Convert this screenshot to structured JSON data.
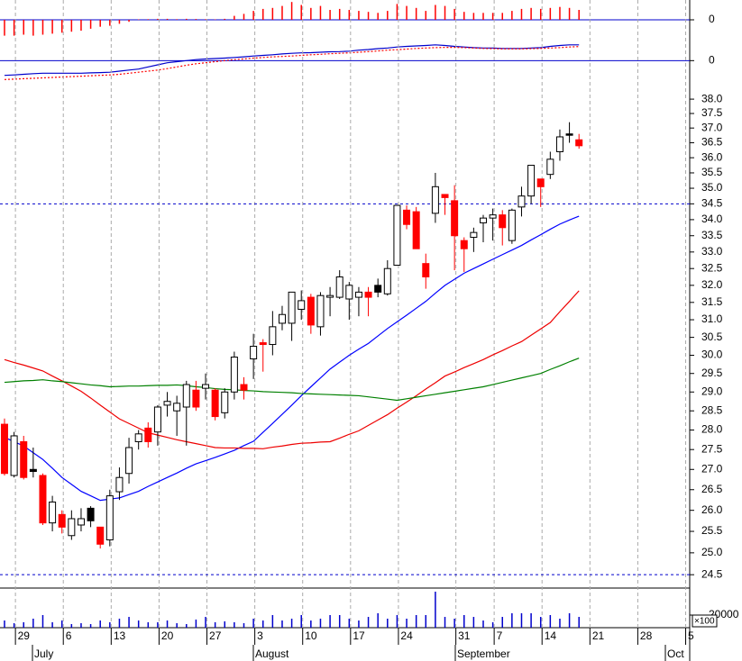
{
  "chart_data": [
    {
      "type": "bar",
      "color": "#ff0000",
      "ylim": [
        -1,
        1
      ],
      "yticks": [
        0
      ],
      "grid": true,
      "grid_color": "#0000cc",
      "values": [
        -0.8,
        -0.8,
        -0.75,
        -0.8,
        -0.75,
        -0.7,
        -0.65,
        -0.6,
        -0.55,
        -0.45,
        -0.35,
        -0.3,
        -0.2,
        -0.1,
        0.02,
        0.03,
        0.05,
        0.05,
        0.03,
        0.05,
        0.04,
        0.03,
        0.02,
        0.05,
        0.2,
        0.3,
        0.45,
        0.55,
        0.6,
        0.7,
        0.9,
        0.75,
        0.6,
        0.7,
        0.5,
        0.55,
        0.5,
        0.45,
        0.4,
        0.35,
        0.45,
        0.8,
        0.7,
        0.6,
        0.45,
        0.75,
        0.7,
        0.55,
        0.4,
        0.35,
        0.35,
        0.35,
        0.35,
        0.45,
        0.55,
        0.6,
        0.55,
        0.6,
        0.65,
        0.6,
        0.5,
        null,
        null,
        null,
        null,
        null,
        null,
        null,
        null,
        null,
        null,
        null
      ]
    },
    {
      "type": "line",
      "ylim": [
        -1.4,
        1
      ],
      "yticks": [
        0
      ],
      "grid": true,
      "grid_color": "#0000cc",
      "series": [
        {
          "color": "#0000cc",
          "line_style": "solid",
          "values": [
            -0.7,
            -0.68,
            -0.65,
            -0.62,
            -0.6,
            -0.6,
            -0.6,
            -0.6,
            -0.6,
            -0.58,
            -0.57,
            -0.55,
            -0.5,
            -0.45,
            -0.4,
            -0.3,
            -0.2,
            -0.1,
            -0.05,
            0,
            0.05,
            0.08,
            0.1,
            0.12,
            0.15,
            0.18,
            0.22,
            0.25,
            0.28,
            0.32,
            0.35,
            0.37,
            0.38,
            0.4,
            0.42,
            0.43,
            0.45,
            0.5,
            0.53,
            0.57,
            0.6,
            0.65,
            0.68,
            0.7,
            0.72,
            0.75,
            0.72,
            0.68,
            0.65,
            0.62,
            0.6,
            0.6,
            0.58,
            0.58,
            0.58,
            0.6,
            0.62,
            0.68,
            0.72,
            0.75,
            0.75,
            null,
            null,
            null,
            null,
            null,
            null,
            null,
            null,
            null,
            null,
            null
          ]
        },
        {
          "color": "#ff0000",
          "line_style": "dotted",
          "values": [
            -0.9,
            -0.88,
            -0.86,
            -0.84,
            -0.82,
            -0.8,
            -0.78,
            -0.76,
            -0.74,
            -0.72,
            -0.7,
            -0.68,
            -0.65,
            -0.6,
            -0.55,
            -0.5,
            -0.45,
            -0.38,
            -0.3,
            -0.22,
            -0.15,
            -0.1,
            -0.05,
            0,
            0.05,
            0.08,
            0.12,
            0.15,
            0.18,
            0.2,
            0.22,
            0.25,
            0.28,
            0.3,
            0.33,
            0.35,
            0.37,
            0.4,
            0.43,
            0.46,
            0.5,
            0.52,
            0.55,
            0.58,
            0.6,
            0.62,
            0.63,
            0.63,
            0.62,
            0.6,
            0.58,
            0.57,
            0.56,
            0.56,
            0.56,
            0.57,
            0.58,
            0.6,
            0.62,
            0.65,
            0.67,
            null,
            null,
            null,
            null,
            null,
            null,
            null,
            null,
            null,
            null,
            null
          ]
        }
      ]
    },
    {
      "type": "candlestick",
      "log_scale": true,
      "ylim": [
        24.2,
        38.32
      ],
      "x_grid": true,
      "categories": [
        null,
        "29",
        null,
        null,
        null,
        null,
        "6",
        null,
        null,
        null,
        null,
        "13",
        null,
        null,
        null,
        null,
        "20",
        null,
        null,
        null,
        null,
        "27",
        null,
        null,
        null,
        null,
        "3",
        null,
        null,
        null,
        null,
        "10",
        null,
        null,
        null,
        null,
        "17",
        null,
        null,
        null,
        null,
        "24",
        null,
        null,
        null,
        null,
        null,
        "31",
        null,
        null,
        null,
        "7",
        null,
        null,
        null,
        null,
        "14",
        null,
        null,
        null,
        null,
        "21",
        null,
        null,
        null,
        null,
        "28",
        null,
        null,
        null,
        null,
        "5"
      ],
      "months": [
        "July",
        "August",
        "September",
        "Oct"
      ],
      "yticks": [
        {
          "value": 24.5,
          "label": "24.5"
        },
        {
          "value": 25,
          "label": "25.0"
        },
        {
          "value": 25.5,
          "label": "25.5"
        },
        {
          "value": 26,
          "label": "26.0"
        },
        {
          "value": 26.5,
          "label": "26.5"
        },
        {
          "value": 27,
          "label": "27.0"
        },
        {
          "value": 27.5,
          "label": "27.5"
        },
        {
          "value": 28,
          "label": "28.0"
        },
        {
          "value": 28.5,
          "label": "28.5"
        },
        {
          "value": 29,
          "label": "29.0"
        },
        {
          "value": 29.5,
          "label": "29.5"
        },
        {
          "value": 30,
          "label": "30.0"
        },
        {
          "value": 30.5,
          "label": "30.5"
        },
        {
          "value": 31,
          "label": "31.0"
        },
        {
          "value": 31.5,
          "label": "31.5"
        },
        {
          "value": 32,
          "label": "32.0"
        },
        {
          "value": 32.5,
          "label": "32.5"
        },
        {
          "value": 33,
          "label": "33.0"
        },
        {
          "value": 33.5,
          "label": "33.5"
        },
        {
          "value": 34,
          "label": "34.0"
        },
        {
          "value": 34.5,
          "label": "34.5"
        },
        {
          "value": 35,
          "label": "35.0"
        },
        {
          "value": 35.5,
          "label": "35.5"
        },
        {
          "value": 36,
          "label": "36.0"
        },
        {
          "value": 36.5,
          "label": "36.5"
        },
        {
          "value": 37,
          "label": "37.0"
        },
        {
          "value": 37.5,
          "label": "37.5"
        },
        {
          "value": 38,
          "label": "38.0"
        }
      ],
      "reference_lines": [
        34.5,
        24.5
      ],
      "reference_color": "#0000cc",
      "open": [
        28.15,
        26.85,
        27.7,
        27.0,
        26.85,
        25.7,
        25.9,
        25.4,
        25.65,
        26.05,
        25.6,
        25.3,
        26.45,
        26.9,
        27.7,
        28.05,
        27.95,
        28.65,
        28.5,
        28.6,
        29.05,
        29.1,
        29.05,
        28.45,
        29.0,
        29.2,
        29.9,
        30.35,
        30.3,
        30.9,
        30.9,
        31.3,
        31.65,
        30.8,
        31.65,
        31.65,
        31.6,
        31.65,
        31.8,
        31.8,
        31.75,
        32.6,
        34.3,
        34.25,
        32.65,
        34.2,
        34.8,
        34.6,
        33.35,
        33.45,
        33.9,
        34.05,
        34.15,
        33.35,
        34.4,
        34.75,
        35.3,
        35.45,
        36.2,
        36.8,
        36.6,
        null,
        null,
        null,
        null,
        null,
        null,
        null,
        null,
        null,
        null,
        null
      ],
      "high": [
        28.3,
        27.95,
        27.85,
        27.55,
        26.9,
        26.35,
        26.0,
        26.0,
        26.05,
        26.1,
        25.6,
        26.5,
        27.05,
        27.8,
        28.0,
        28.2,
        28.65,
        29.0,
        28.9,
        29.3,
        29.3,
        29.5,
        29.1,
        29.1,
        30.1,
        29.4,
        30.6,
        30.45,
        31.25,
        31.4,
        31.8,
        31.85,
        31.75,
        31.8,
        31.95,
        32.45,
        32.1,
        31.95,
        31.95,
        32.2,
        32.75,
        34.45,
        34.45,
        34.4,
        32.95,
        35.5,
        34.8,
        35.1,
        33.45,
        33.75,
        34.15,
        34.35,
        34.3,
        34.35,
        35.05,
        35.75,
        35.3,
        36.2,
        36.95,
        37.2,
        36.8,
        null,
        null,
        null,
        null,
        null,
        null,
        null,
        null,
        null,
        null,
        null
      ],
      "low": [
        26.85,
        26.8,
        26.75,
        26.8,
        25.65,
        25.5,
        25.45,
        25.3,
        25.5,
        25.6,
        25.1,
        25.15,
        26.25,
        26.65,
        27.5,
        27.55,
        27.6,
        28.35,
        27.85,
        27.6,
        28.5,
        28.8,
        28.25,
        28.3,
        28.8,
        28.8,
        29.35,
        29.55,
        30.0,
        30.7,
        30.4,
        31.0,
        30.6,
        30.55,
        31.1,
        31.6,
        31.0,
        31.1,
        31.1,
        31.65,
        31.7,
        32.6,
        33.7,
        33.1,
        31.9,
        33.9,
        34.15,
        32.45,
        32.4,
        33.0,
        33.3,
        33.35,
        33.2,
        33.25,
        34.1,
        34.5,
        34.4,
        35.3,
        35.9,
        36.5,
        36.3,
        null,
        null,
        null,
        null,
        null,
        null,
        null,
        null,
        null,
        null,
        null
      ],
      "close": [
        26.9,
        27.85,
        26.8,
        26.95,
        25.7,
        26.2,
        25.6,
        25.8,
        25.8,
        25.75,
        25.2,
        26.35,
        26.8,
        27.55,
        27.9,
        27.7,
        28.6,
        28.75,
        28.7,
        29.2,
        28.6,
        29.2,
        28.35,
        29.0,
        29.95,
        29.05,
        30.25,
        30.3,
        30.8,
        31.15,
        31.8,
        31.55,
        30.85,
        31.7,
        31.7,
        32.25,
        32.0,
        31.8,
        31.65,
        32.0,
        32.5,
        34.45,
        33.85,
        33.1,
        32.25,
        35.05,
        34.7,
        33.5,
        33.1,
        33.6,
        34.05,
        34.15,
        33.75,
        34.3,
        34.75,
        35.75,
        35.05,
        35.95,
        36.7,
        36.8,
        36.4,
        null,
        null,
        null,
        null,
        null,
        null,
        null,
        null,
        null,
        null,
        null
      ],
      "candle_colors": [
        "#ff0000",
        "#ffffff",
        "#ff0000",
        "#000000",
        "#ff0000",
        "#ffffff",
        "#ff0000",
        "#ffffff",
        "#ffffff",
        "#000000",
        "#ff0000",
        "#ffffff",
        "#ffffff",
        "#ffffff",
        "#ffffff",
        "#ff0000",
        "#ffffff",
        "#ffffff",
        "#ffffff",
        "#ffffff",
        "#ff0000",
        "#ffffff",
        "#ff0000",
        "#ffffff",
        "#ffffff",
        "#ff0000",
        "#ffffff",
        "#ff0000",
        "#ffffff",
        "#ffffff",
        "#ffffff",
        "#ffffff",
        "#ff0000",
        "#ffffff",
        "#ffffff",
        "#ffffff",
        "#ffffff",
        "#ffffff",
        "#ff0000",
        "#000000",
        "#ffffff",
        "#ffffff",
        "#ff0000",
        "#ff0000",
        "#ff0000",
        "#ffffff",
        "#ff0000",
        "#ff0000",
        "#ff0000",
        "#ffffff",
        "#ffffff",
        "#ffffff",
        "#ff0000",
        "#ffffff",
        "#ffffff",
        "#ffffff",
        "#ff0000",
        "#ffffff",
        "#ffffff",
        "#000000",
        "#ff0000",
        null,
        null,
        null,
        null,
        null,
        null,
        null,
        null,
        null,
        null,
        null
      ],
      "series": [
        {
          "color": "#0000ff",
          "values": [
            27.81,
            27.7,
            27.59,
            27.42,
            27.25,
            27.03,
            26.8,
            26.63,
            26.46,
            26.35,
            26.24,
            26.27,
            26.3,
            26.38,
            26.46,
            26.58,
            26.69,
            26.8,
            26.91,
            27.03,
            27.14,
            27.22,
            27.3,
            27.39,
            27.48,
            27.6,
            27.71,
            27.94,
            28.17,
            28.41,
            28.65,
            28.9,
            29.14,
            29.38,
            29.62,
            29.81,
            30.0,
            30.17,
            30.33,
            30.54,
            30.75,
            30.94,
            31.13,
            31.33,
            31.53,
            31.77,
            32.0,
            32.18,
            32.36,
            32.5,
            32.64,
            32.78,
            32.92,
            33.06,
            33.2,
            33.37,
            33.53,
            33.7,
            33.86,
            33.99,
            34.11,
            null,
            null,
            null,
            null,
            null,
            null,
            null,
            null,
            null,
            null,
            null
          ]
        },
        {
          "color": "#ee0000",
          "values": [
            29.88,
            29.8,
            29.73,
            29.65,
            29.57,
            29.43,
            29.3,
            29.16,
            29.02,
            28.84,
            28.65,
            28.47,
            28.29,
            28.17,
            28.05,
            27.93,
            27.87,
            27.81,
            27.75,
            27.7,
            27.65,
            27.6,
            27.55,
            27.54,
            27.54,
            27.53,
            27.53,
            27.52,
            27.56,
            27.59,
            27.63,
            27.66,
            27.67,
            27.69,
            27.7,
            27.79,
            27.89,
            27.98,
            28.12,
            28.26,
            28.4,
            28.57,
            28.73,
            28.9,
            29.08,
            29.25,
            29.43,
            29.54,
            29.66,
            29.77,
            29.88,
            30.01,
            30.13,
            30.26,
            30.38,
            30.56,
            30.74,
            30.92,
            31.23,
            31.53,
            31.84,
            null,
            null,
            null,
            null,
            null,
            null,
            null,
            null,
            null,
            null,
            null
          ]
        },
        {
          "color": "#008000",
          "values": [
            29.26,
            29.28,
            29.3,
            29.31,
            29.33,
            29.3,
            29.28,
            29.25,
            29.22,
            29.19,
            29.17,
            29.14,
            29.15,
            29.16,
            29.16,
            29.17,
            29.18,
            29.18,
            29.19,
            29.17,
            29.14,
            29.12,
            29.09,
            29.07,
            29.06,
            29.04,
            29.03,
            29.01,
            29.0,
            28.99,
            28.98,
            28.96,
            28.95,
            28.94,
            28.93,
            28.92,
            28.91,
            28.9,
            28.87,
            28.84,
            28.81,
            28.78,
            28.82,
            28.86,
            28.9,
            28.94,
            28.98,
            29.02,
            29.06,
            29.1,
            29.14,
            29.2,
            29.26,
            29.32,
            29.38,
            29.44,
            29.5,
            29.61,
            29.71,
            29.82,
            29.92,
            null,
            null,
            null,
            null,
            null,
            null,
            null,
            null,
            null,
            null,
            null
          ]
        }
      ]
    },
    {
      "type": "bar",
      "color": "#0000cc",
      "ylim": [
        0,
        62860
      ],
      "yticks": [
        20000
      ],
      "unit_label": "×100",
      "values": [
        11400,
        7100,
        8600,
        14300,
        20000,
        8600,
        11400,
        5700,
        7100,
        5700,
        11400,
        8600,
        14300,
        17100,
        11400,
        8600,
        8600,
        11400,
        7100,
        5700,
        12900,
        17100,
        8600,
        10000,
        8600,
        7100,
        14300,
        11400,
        20000,
        11400,
        14300,
        20000,
        11400,
        14300,
        20000,
        20000,
        14300,
        11400,
        17100,
        22900,
        14300,
        20000,
        14300,
        20000,
        20000,
        57100,
        17100,
        14300,
        20000,
        17100,
        11400,
        8600,
        17100,
        22900,
        22900,
        22900,
        17100,
        20000,
        14300,
        22900,
        17100,
        null,
        null,
        null,
        null,
        null,
        null,
        null,
        null,
        null,
        null,
        null
      ]
    }
  ]
}
